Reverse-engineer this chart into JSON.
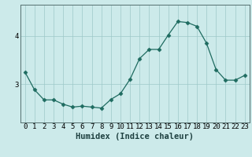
{
  "x": [
    0,
    1,
    2,
    3,
    4,
    5,
    6,
    7,
    8,
    9,
    10,
    11,
    12,
    13,
    14,
    15,
    16,
    17,
    18,
    19,
    20,
    21,
    22,
    23
  ],
  "y": [
    3.25,
    2.88,
    2.67,
    2.67,
    2.58,
    2.52,
    2.54,
    2.52,
    2.5,
    2.68,
    2.8,
    3.1,
    3.53,
    3.72,
    3.72,
    4.02,
    4.3,
    4.28,
    4.2,
    3.85,
    3.3,
    3.08,
    3.08,
    3.18
  ],
  "line_color": "#1e6b60",
  "marker": "D",
  "marker_size": 2.5,
  "bg_color": "#cceaea",
  "grid_color": "#9dc8c8",
  "xlabel": "Humidex (Indice chaleur)",
  "ylim": [
    2.2,
    4.65
  ],
  "yticks": [
    3,
    4
  ],
  "xlabel_fontsize": 7.5,
  "tick_fontsize": 6.5,
  "xlabel_fontweight": "bold"
}
